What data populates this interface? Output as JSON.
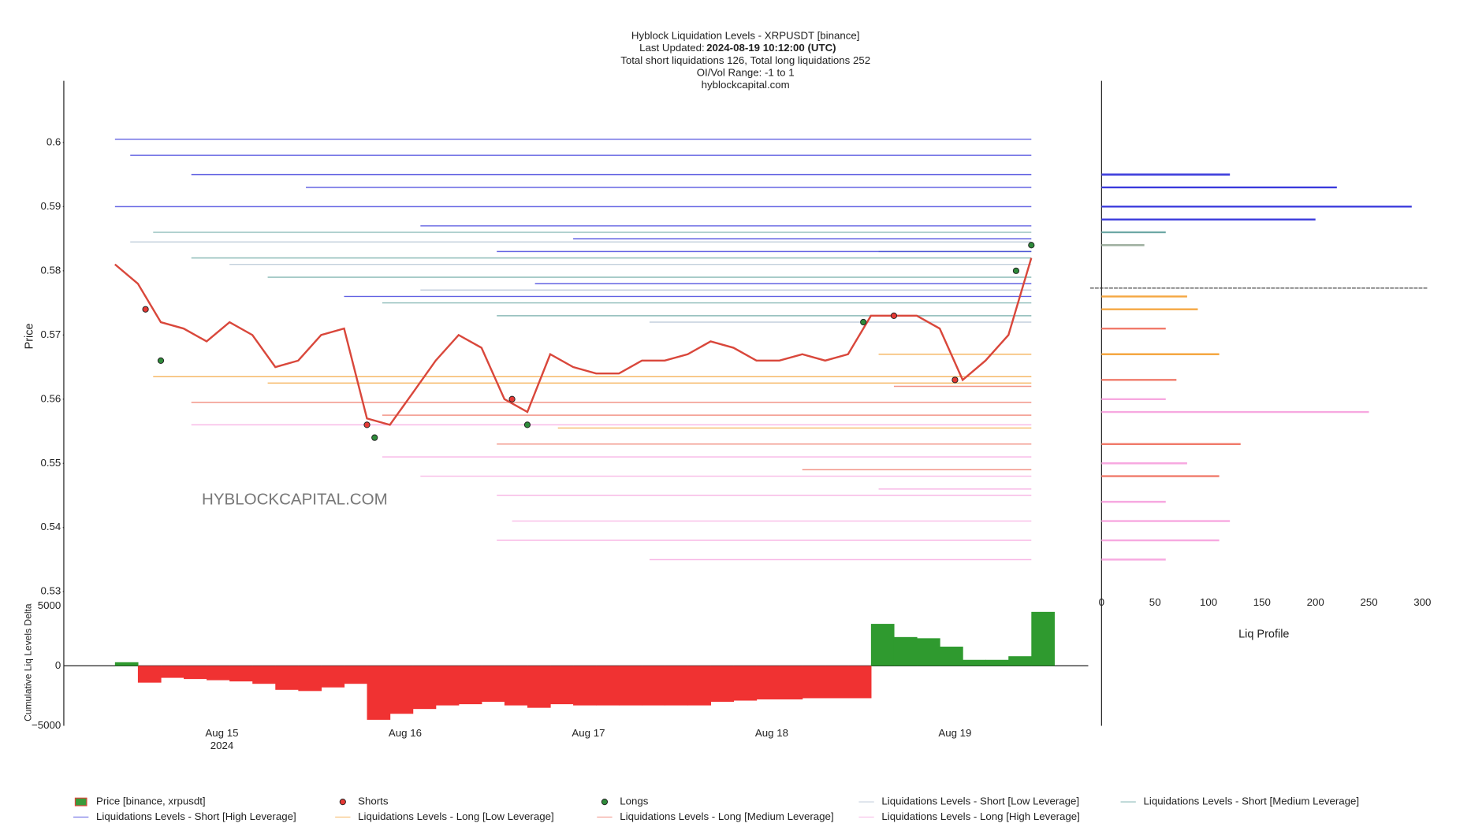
{
  "header": {
    "title": "Hyblock Liquidation Levels - XRPUSDT [binance]",
    "updated_label": "Last Updated:",
    "updated_value": "2024-08-19 10:12:00 (UTC)",
    "totals": "Total short liquidations 126, Total long liquidations 252",
    "range": "OI/Vol Range: -1 to 1",
    "site": "hyblockcapital.com"
  },
  "chart_data": [
    {
      "type": "line",
      "ylabel": "Price",
      "annotation": "HYBLOCKCAPITAL.COM",
      "xlim": [
        "2024-08-14T03:18",
        "2024-08-19T17:27"
      ],
      "xticks": [
        {
          "value": "2024-08-15",
          "label": "Aug 15\n2024"
        },
        {
          "value": "2024-08-16",
          "label": "Aug 16"
        },
        {
          "value": "2024-08-17",
          "label": "Aug 17"
        },
        {
          "value": "2024-08-18",
          "label": "Aug 18"
        },
        {
          "value": "2024-08-19",
          "label": "Aug 19"
        }
      ],
      "ylim": [
        0.53,
        0.6096
      ],
      "yticks": [
        0.53,
        0.54,
        0.55,
        0.56,
        0.57,
        0.58,
        0.59,
        0.6
      ],
      "series": [
        {
          "name": "Price [binance, xrpusdt]",
          "kind": "price",
          "color": "#d9473b",
          "marker_color": "#3a9a3a",
          "x": [
            "2024-08-14T10:00",
            "2024-08-14T13:00",
            "2024-08-14T16:00",
            "2024-08-14T19:00",
            "2024-08-14T22:00",
            "2024-08-15T01:00",
            "2024-08-15T04:00",
            "2024-08-15T07:00",
            "2024-08-15T10:00",
            "2024-08-15T13:00",
            "2024-08-15T16:00",
            "2024-08-15T19:00",
            "2024-08-15T22:00",
            "2024-08-16T01:00",
            "2024-08-16T04:00",
            "2024-08-16T07:00",
            "2024-08-16T10:00",
            "2024-08-16T13:00",
            "2024-08-16T16:00",
            "2024-08-16T19:00",
            "2024-08-16T22:00",
            "2024-08-17T01:00",
            "2024-08-17T04:00",
            "2024-08-17T07:00",
            "2024-08-17T10:00",
            "2024-08-17T13:00",
            "2024-08-17T16:00",
            "2024-08-17T19:00",
            "2024-08-17T22:00",
            "2024-08-18T01:00",
            "2024-08-18T04:00",
            "2024-08-18T07:00",
            "2024-08-18T10:00",
            "2024-08-18T13:00",
            "2024-08-18T16:00",
            "2024-08-18T19:00",
            "2024-08-18T22:00",
            "2024-08-19T01:00",
            "2024-08-19T04:00",
            "2024-08-19T07:00",
            "2024-08-19T10:00"
          ],
          "values": [
            0.581,
            0.578,
            0.572,
            0.571,
            0.569,
            0.572,
            0.57,
            0.565,
            0.566,
            0.57,
            0.571,
            0.557,
            0.556,
            0.561,
            0.566,
            0.57,
            0.568,
            0.56,
            0.558,
            0.567,
            0.565,
            0.564,
            0.564,
            0.566,
            0.566,
            0.567,
            0.569,
            0.568,
            0.566,
            0.566,
            0.567,
            0.566,
            0.567,
            0.573,
            0.573,
            0.573,
            0.571,
            0.563,
            0.566,
            0.57,
            0.582
          ]
        },
        {
          "name": "Shorts",
          "kind": "marker",
          "color": "#e53935",
          "x": [
            "2024-08-14T14:00",
            "2024-08-15T19:00",
            "2024-08-16T14:00",
            "2024-08-18T16:00",
            "2024-08-19T00:00"
          ],
          "values": [
            0.574,
            0.556,
            0.56,
            0.573,
            0.563
          ]
        },
        {
          "name": "Longs",
          "kind": "marker",
          "color": "#2e8b3a",
          "x": [
            "2024-08-14T16:00",
            "2024-08-15T20:00",
            "2024-08-16T16:00",
            "2024-08-18T12:00",
            "2024-08-19T08:00",
            "2024-08-19T10:00"
          ],
          "values": [
            0.566,
            0.554,
            0.556,
            0.572,
            0.58,
            0.584
          ]
        },
        {
          "name": "Liquidations Levels - Short [Low Leverage]",
          "kind": "level",
          "color": "#b5c4d4",
          "x": [
            "2024-08-14T12:00",
            "2024-08-15T01:00",
            "2024-08-16T02:00",
            "2024-08-17T08:00"
          ],
          "values": [
            0.5845,
            0.581,
            0.577,
            0.572
          ]
        },
        {
          "name": "Liquidations Levels - Short [Medium Leverage]",
          "kind": "level",
          "color": "#6fa9a6",
          "x": [
            "2024-08-14T15:00",
            "2024-08-14T20:00",
            "2024-08-15T06:00",
            "2024-08-15T21:00",
            "2024-08-16T12:00",
            "2024-08-18T14:00"
          ],
          "values": [
            0.586,
            0.582,
            0.579,
            0.575,
            0.573,
            0.583
          ]
        },
        {
          "name": "Liquidations Levels - Short [High Leverage]",
          "kind": "level",
          "color": "#3b3bdc",
          "x": [
            "2024-08-14T10:00",
            "2024-08-14T12:00",
            "2024-08-14T20:00",
            "2024-08-15T11:00",
            "2024-08-14T10:00",
            "2024-08-16T02:00",
            "2024-08-16T22:00",
            "2024-08-16T12:00",
            "2024-08-16T17:00",
            "2024-08-15T16:00"
          ],
          "values": [
            0.6005,
            0.598,
            0.595,
            0.593,
            0.59,
            0.587,
            0.585,
            0.583,
            0.578,
            0.576
          ]
        },
        {
          "name": "Liquidations Levels - Long [Low Leverage]",
          "kind": "level",
          "color": "#f5a742",
          "x": [
            "2024-08-14T15:00",
            "2024-08-15T06:00",
            "2024-08-18T14:00",
            "2024-08-16T20:00"
          ],
          "values": [
            0.5635,
            0.5625,
            0.567,
            0.5555
          ]
        },
        {
          "name": "Liquidations Levels - Long [Medium Leverage]",
          "kind": "level",
          "color": "#f07a6a",
          "x": [
            "2024-08-14T20:00",
            "2024-08-15T21:00",
            "2024-08-16T12:00",
            "2024-08-18T04:00",
            "2024-08-18T16:00"
          ],
          "values": [
            0.5595,
            0.5575,
            0.553,
            0.549,
            0.562
          ]
        },
        {
          "name": "Liquidations Levels - Long [High Leverage]",
          "kind": "level",
          "color": "#f7a8e0",
          "x": [
            "2024-08-14T20:00",
            "2024-08-15T21:00",
            "2024-08-16T02:00",
            "2024-08-16T12:00",
            "2024-08-16T14:00",
            "2024-08-16T12:00",
            "2024-08-17T08:00",
            "2024-08-18T14:00"
          ],
          "values": [
            0.556,
            0.551,
            0.548,
            0.545,
            0.541,
            0.538,
            0.535,
            0.546
          ]
        }
      ]
    },
    {
      "type": "bar",
      "ylabel": "Cumulative Liq Levels Delta",
      "positive_color": "#2f9a2f",
      "negative_color": "#f03232",
      "ylim": [
        -5000,
        5550
      ],
      "yticks": [
        {
          "value": -5000,
          "label": "−5000"
        },
        0,
        5000
      ],
      "x": [
        "2024-08-14T10:00",
        "2024-08-14T13:00",
        "2024-08-14T16:00",
        "2024-08-14T19:00",
        "2024-08-14T22:00",
        "2024-08-15T01:00",
        "2024-08-15T04:00",
        "2024-08-15T07:00",
        "2024-08-15T10:00",
        "2024-08-15T13:00",
        "2024-08-15T16:00",
        "2024-08-15T19:00",
        "2024-08-15T22:00",
        "2024-08-16T01:00",
        "2024-08-16T04:00",
        "2024-08-16T07:00",
        "2024-08-16T10:00",
        "2024-08-16T13:00",
        "2024-08-16T16:00",
        "2024-08-16T19:00",
        "2024-08-16T22:00",
        "2024-08-17T01:00",
        "2024-08-17T04:00",
        "2024-08-17T07:00",
        "2024-08-17T10:00",
        "2024-08-17T13:00",
        "2024-08-17T16:00",
        "2024-08-17T19:00",
        "2024-08-17T22:00",
        "2024-08-18T01:00",
        "2024-08-18T04:00",
        "2024-08-18T07:00",
        "2024-08-18T10:00",
        "2024-08-18T13:00",
        "2024-08-18T16:00",
        "2024-08-18T19:00",
        "2024-08-18T22:00",
        "2024-08-19T01:00",
        "2024-08-19T04:00",
        "2024-08-19T07:00",
        "2024-08-19T10:00"
      ],
      "values": [
        300,
        -1400,
        -1000,
        -1100,
        -1200,
        -1300,
        -1500,
        -2000,
        -2100,
        -1800,
        -1500,
        -4500,
        -4000,
        -3600,
        -3300,
        -3200,
        -3000,
        -3300,
        -3500,
        -3200,
        -3300,
        -3300,
        -3300,
        -3300,
        -3300,
        -3300,
        -3000,
        -2900,
        -2800,
        -2800,
        -2700,
        -2700,
        -2700,
        3500,
        2400,
        2300,
        1600,
        500,
        500,
        800,
        4500
      ]
    },
    {
      "type": "barh",
      "xlabel": "Liq Profile",
      "xlim": [
        0,
        300
      ],
      "xticks": [
        0,
        50,
        100,
        150,
        200,
        250,
        300
      ],
      "current_price": 0.5773,
      "line_color": "#333",
      "y": [
        0.595,
        0.593,
        0.59,
        0.588,
        0.586,
        0.584,
        0.576,
        0.574,
        0.571,
        0.567,
        0.563,
        0.56,
        0.558,
        0.553,
        0.55,
        0.548,
        0.544,
        0.541,
        0.538,
        0.535
      ],
      "values": [
        120,
        220,
        290,
        200,
        60,
        40,
        80,
        90,
        60,
        110,
        70,
        60,
        250,
        130,
        80,
        110,
        60,
        120,
        110,
        60
      ],
      "colors": [
        "#3b3bdc",
        "#3b3bdc",
        "#3b3bdc",
        "#3b3bdc",
        "#6fa9a6",
        "#9fb0a0",
        "#f5a742",
        "#f5a742",
        "#f07a6a",
        "#f5a742",
        "#f07a6a",
        "#f7a8e0",
        "#f7a8e0",
        "#f07a6a",
        "#f7a8e0",
        "#f07a6a",
        "#f7a8e0",
        "#f7a8e0",
        "#f7a8e0",
        "#f7a8e0"
      ]
    }
  ]
}
